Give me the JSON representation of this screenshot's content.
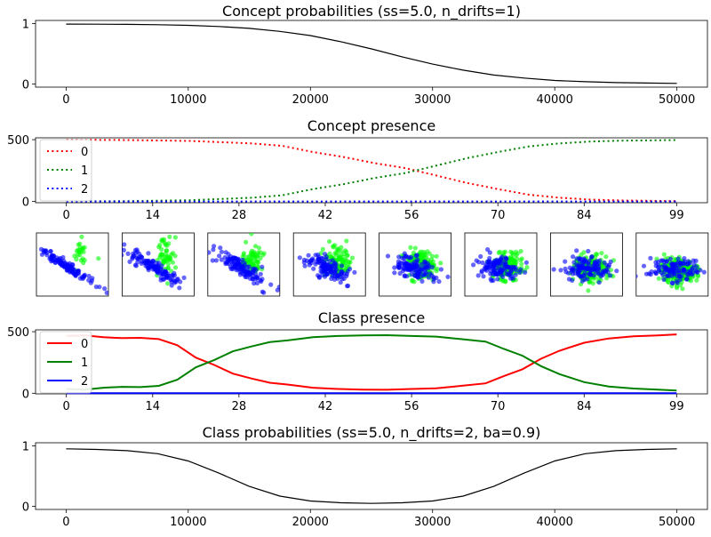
{
  "colors": {
    "red": "#ff0000",
    "green": "#008000",
    "blue": "#0000ff",
    "lime": "#00ff00",
    "black": "#000000"
  },
  "chart_data": [
    {
      "type": "line",
      "title": "Concept probabilities (ss=5.0, n_drifts=1)",
      "x": [
        0,
        2500,
        5000,
        7500,
        10000,
        12500,
        15000,
        17500,
        20000,
        22500,
        25000,
        27500,
        30000,
        32500,
        35000,
        37500,
        40000,
        42500,
        45000,
        47500,
        50000
      ],
      "series": [
        {
          "values": [
            0.99,
            0.988,
            0.985,
            0.98,
            0.97,
            0.95,
            0.92,
            0.87,
            0.8,
            0.7,
            0.58,
            0.45,
            0.33,
            0.23,
            0.15,
            0.1,
            0.06,
            0.04,
            0.025,
            0.018,
            0.012
          ],
          "color": "#000000"
        }
      ],
      "xticks": [
        "0",
        "10000",
        "20000",
        "30000",
        "40000",
        "50000"
      ],
      "yticks": [
        "0",
        "1"
      ],
      "xlim": [
        -2500,
        52500
      ],
      "ylim": [
        -0.05,
        1.05
      ]
    },
    {
      "type": "line",
      "title": "Concept presence",
      "x_count": 100,
      "series": [
        {
          "name": "0",
          "color": "#ff0000",
          "style": "dotted",
          "x": [
            0,
            10,
            20,
            30,
            35,
            40,
            45,
            50,
            55,
            60,
            65,
            70,
            75,
            80,
            85,
            90,
            99
          ],
          "values": [
            500,
            497,
            490,
            470,
            450,
            400,
            360,
            310,
            270,
            210,
            150,
            100,
            55,
            30,
            15,
            8,
            3
          ]
        },
        {
          "name": "1",
          "color": "#008000",
          "style": "dotted",
          "x": [
            0,
            10,
            20,
            30,
            35,
            40,
            45,
            50,
            55,
            60,
            65,
            70,
            75,
            80,
            85,
            90,
            99
          ],
          "values": [
            0,
            3,
            10,
            30,
            50,
            100,
            140,
            190,
            230,
            290,
            350,
            400,
            445,
            470,
            485,
            492,
            497
          ]
        },
        {
          "name": "2",
          "color": "#0000ff",
          "style": "dotted",
          "x": [
            0,
            99
          ],
          "values": [
            0,
            0
          ]
        }
      ],
      "xticks": [
        "0",
        "14",
        "28",
        "42",
        "56",
        "70",
        "84",
        "99"
      ],
      "yticks": [
        "0",
        "500"
      ],
      "xlim": [
        -5,
        104
      ],
      "ylim": [
        -10,
        515
      ],
      "legend": "upper-left"
    },
    {
      "type": "scatter",
      "panels": 8
    },
    {
      "type": "line",
      "title": "Class presence",
      "series": [
        {
          "name": "0",
          "color": "#ff0000",
          "x": [
            0,
            3,
            6,
            9,
            12,
            15,
            18,
            21,
            24,
            27,
            30,
            33,
            36,
            40,
            44,
            48,
            52,
            56,
            60,
            64,
            68,
            71,
            74,
            77,
            80,
            84,
            88,
            92,
            96,
            99
          ],
          "values": [
            465,
            470,
            455,
            448,
            450,
            440,
            390,
            290,
            230,
            160,
            120,
            85,
            70,
            45,
            35,
            30,
            28,
            35,
            40,
            60,
            80,
            140,
            195,
            280,
            345,
            410,
            445,
            462,
            470,
            478
          ]
        },
        {
          "name": "1",
          "color": "#008000",
          "x": [
            0,
            3,
            6,
            9,
            12,
            15,
            18,
            21,
            24,
            27,
            30,
            33,
            36,
            40,
            44,
            48,
            52,
            56,
            60,
            64,
            68,
            71,
            74,
            77,
            80,
            84,
            88,
            92,
            96,
            99
          ],
          "values": [
            35,
            30,
            45,
            52,
            50,
            60,
            110,
            210,
            270,
            340,
            380,
            415,
            430,
            455,
            465,
            470,
            472,
            465,
            460,
            440,
            420,
            360,
            305,
            220,
            155,
            90,
            55,
            38,
            30,
            22
          ]
        },
        {
          "name": "2",
          "color": "#0000ff",
          "x": [
            0,
            99
          ],
          "values": [
            0,
            0
          ]
        }
      ],
      "xticks": [
        "0",
        "14",
        "28",
        "42",
        "56",
        "70",
        "84",
        "99"
      ],
      "yticks": [
        "0",
        "500"
      ],
      "xlim": [
        -5,
        104
      ],
      "ylim": [
        -5,
        515
      ],
      "legend": "upper-left"
    },
    {
      "type": "line",
      "title": "Class probabilities (ss=5.0, n_drifts=2, ba=0.9)",
      "x": [
        0,
        2500,
        5000,
        7500,
        10000,
        12500,
        15000,
        17500,
        20000,
        22500,
        25000,
        27500,
        30000,
        32500,
        35000,
        37500,
        40000,
        42500,
        45000,
        47500,
        50000
      ],
      "series": [
        {
          "values": [
            0.95,
            0.94,
            0.92,
            0.87,
            0.75,
            0.55,
            0.33,
            0.17,
            0.09,
            0.06,
            0.05,
            0.06,
            0.09,
            0.17,
            0.33,
            0.55,
            0.75,
            0.87,
            0.92,
            0.94,
            0.95
          ],
          "color": "#000000"
        }
      ],
      "xticks": [
        "0",
        "10000",
        "20000",
        "30000",
        "40000",
        "50000"
      ],
      "yticks": [
        "0",
        "1"
      ],
      "xlim": [
        -2500,
        52500
      ],
      "ylim": [
        -0.05,
        1.05
      ]
    }
  ]
}
